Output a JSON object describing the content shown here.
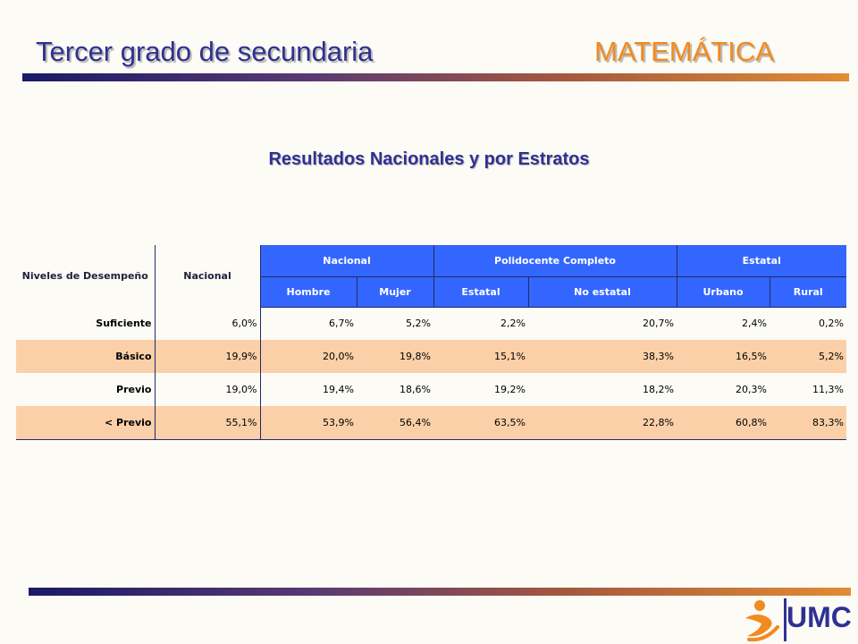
{
  "slide": {
    "title_left": "Tercer grado de secundaria",
    "title_right": "MATEMÁTICA",
    "subtitle": "Resultados Nacionales y por Estratos",
    "accent_blue": "#2e3192",
    "accent_orange": "#f28a1f"
  },
  "table": {
    "col_levels": "Niveles de Desempeño",
    "col_nacional": "Nacional",
    "groups": {
      "nacional": "Nacional",
      "polidocente": "Polidocente Completo",
      "estatal": "Estatal"
    },
    "subheaders": [
      "Hombre",
      "Mujer",
      "Estatal",
      "No estatal",
      "Urbano",
      "Rural"
    ],
    "rows": [
      {
        "label": "Suficiente",
        "values": [
          "6,0%",
          "6,7%",
          "5,2%",
          "2,2%",
          "20,7%",
          "2,4%",
          "0,2%"
        ]
      },
      {
        "label": "Básico",
        "values": [
          "19,9%",
          "20,0%",
          "19,8%",
          "15,1%",
          "38,3%",
          "16,5%",
          "5,2%"
        ]
      },
      {
        "label": "Previo",
        "values": [
          "19,0%",
          "19,4%",
          "18,6%",
          "19,2%",
          "18,2%",
          "20,3%",
          "11,3%"
        ]
      },
      {
        "label": "< Previo",
        "values": [
          "55,1%",
          "53,9%",
          "56,4%",
          "63,5%",
          "22,8%",
          "60,8%",
          "83,3%"
        ]
      }
    ],
    "colors": {
      "header": "#3366ff",
      "stripe": "#fbd0a8"
    }
  },
  "logo": {
    "text": "UMC",
    "icon": "person-swoosh-icon"
  }
}
